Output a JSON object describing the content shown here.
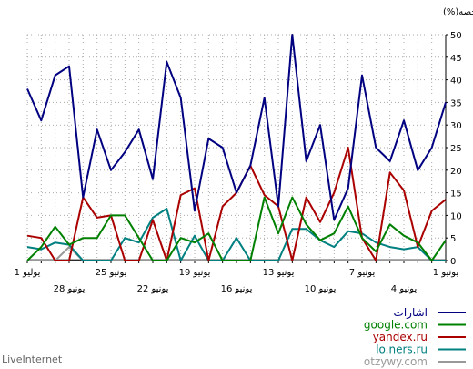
{
  "chart_data": {
    "type": "line",
    "ylabel": "الحصه(%)",
    "ylim": [
      0,
      50
    ],
    "y_ticks": [
      0,
      5,
      10,
      15,
      20,
      25,
      30,
      35,
      40,
      45,
      50
    ],
    "grid": true,
    "legend": "bottom-right",
    "x_count": 31,
    "x_tick_labels_top": [
      {
        "i": 0,
        "label": "1 يوليو"
      },
      {
        "i": 6,
        "label": "25 يونيو"
      },
      {
        "i": 12,
        "label": "19 يونيو"
      },
      {
        "i": 18,
        "label": "13 يونيو"
      },
      {
        "i": 24,
        "label": "7 يونيو"
      },
      {
        "i": 30,
        "label": "1 يونيو"
      }
    ],
    "x_tick_labels_bottom": [
      {
        "i": 3,
        "label": "28 يونيو"
      },
      {
        "i": 9,
        "label": "22 يونيو"
      },
      {
        "i": 15,
        "label": "16 يونيو"
      },
      {
        "i": 21,
        "label": "10 يونيو"
      },
      {
        "i": 27,
        "label": "4 يونيو"
      }
    ],
    "series": [
      {
        "name": "اشارات",
        "color": "#000080",
        "values": [
          38,
          31,
          41,
          43,
          14,
          29,
          20,
          24,
          29,
          18,
          44,
          36,
          11,
          27,
          25,
          15,
          21,
          36,
          12,
          50,
          22,
          30,
          9,
          16,
          41,
          25,
          22,
          31,
          20,
          25,
          35
        ]
      },
      {
        "name": "google.com",
        "color": "#008000",
        "values": [
          0,
          3,
          7.5,
          3.5,
          5,
          5,
          10,
          10,
          5,
          0,
          0,
          5,
          4,
          6,
          0,
          0,
          0,
          14,
          6,
          14,
          8,
          4.5,
          6,
          12,
          5,
          2,
          8,
          5.5,
          4,
          0,
          4.5
        ]
      },
      {
        "name": "yandex.ru",
        "color": "#aa0000",
        "values": [
          5.5,
          5,
          0,
          0,
          14,
          9.5,
          10,
          0,
          0,
          9,
          0,
          14.5,
          16,
          0,
          12,
          15,
          21,
          14.5,
          12,
          0,
          14,
          8.5,
          15,
          25,
          5,
          0,
          19.5,
          15.5,
          3,
          11,
          13.5
        ]
      },
      {
        "name": "lo.ners.ru",
        "color": "#008080",
        "values": [
          3,
          2.5,
          4,
          3.5,
          0,
          0,
          0,
          5,
          4,
          9.5,
          11.5,
          0,
          5.5,
          0,
          0,
          5,
          0,
          0,
          0,
          7,
          7,
          4.5,
          3,
          6.5,
          6,
          4,
          3,
          2.5,
          3,
          0,
          0
        ]
      },
      {
        "name": "otzywy.com",
        "color": "#999999",
        "values": [
          0,
          0,
          0,
          3,
          0,
          0,
          0,
          0,
          0,
          0,
          0,
          0,
          0,
          0,
          0,
          0,
          0,
          0,
          0,
          0,
          0,
          0,
          0,
          0,
          0,
          0,
          0,
          0,
          0,
          0,
          0
        ]
      }
    ]
  },
  "footer": {
    "brand": "LiveInternet"
  }
}
